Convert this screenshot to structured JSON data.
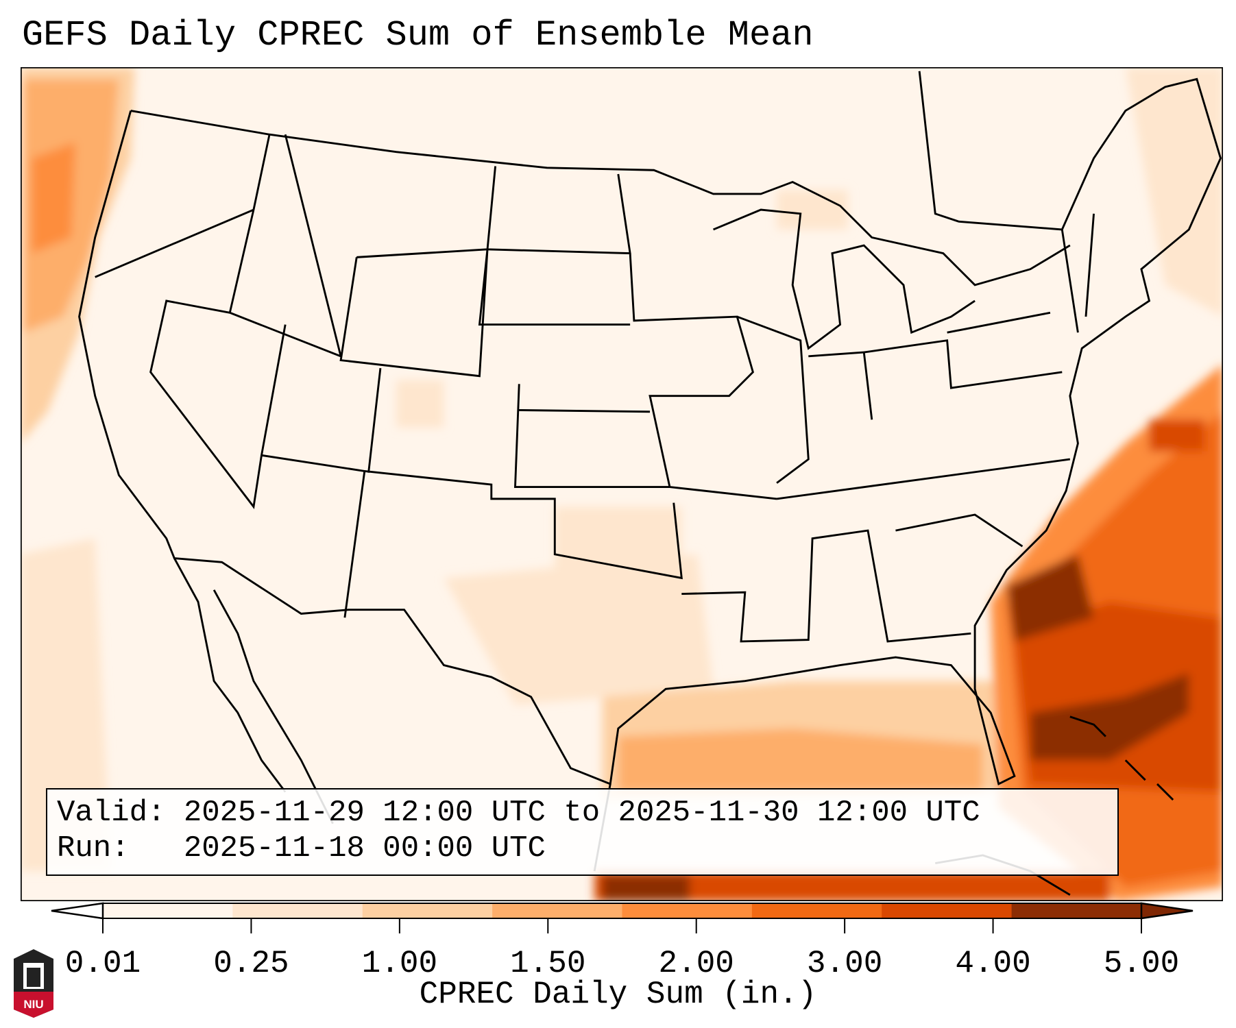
{
  "title": "GEFS Daily CPREC Sum of Ensemble Mean",
  "info_box": {
    "valid_label": "Valid:",
    "valid_value": "2025-11-29 12:00 UTC to 2025-11-30 12:00 UTC",
    "run_label": "Run:",
    "run_value": "2025-11-18 00:00 UTC"
  },
  "colorbar": {
    "label": "CPREC Daily Sum (in.)",
    "ticks": [
      "0.01",
      "0.25",
      "1.00",
      "1.50",
      "2.00",
      "3.00",
      "4.00",
      "5.00"
    ],
    "colors": [
      "#fff5eb",
      "#fee6ce",
      "#fdd0a2",
      "#fdae6b",
      "#fd8d3c",
      "#f16913",
      "#d94801",
      "#8c2d04"
    ],
    "under_color": "#ffffff",
    "over_color": "#7f2704"
  },
  "logo": {
    "text": "NIU"
  }
}
